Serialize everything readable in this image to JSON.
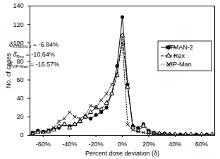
{
  "chart_data": {
    "type": "line",
    "x_label": "Percent dose deviation (δ)",
    "y_label": "No. of cases",
    "x": [
      -68,
      -64,
      -60,
      -56,
      -52,
      -48,
      -44,
      -40,
      -36,
      -32,
      -28,
      -24,
      -20,
      -16,
      -12,
      -8,
      -4,
      0,
      4,
      8,
      12,
      16,
      20,
      24,
      28,
      32,
      36,
      40,
      44,
      48,
      52,
      56,
      60,
      64,
      68
    ],
    "series": [
      {
        "name": "KTMAN-2",
        "color": "#000000",
        "marker": "circle",
        "line_style": "solid",
        "values": [
          3,
          5,
          4,
          5,
          7,
          8,
          12,
          10,
          12,
          15,
          20,
          18,
          22,
          25,
          30,
          45,
          75,
          128,
          55,
          10,
          8,
          12,
          5,
          3,
          2,
          2,
          1,
          1,
          1,
          1,
          0,
          1,
          0,
          1,
          0
        ]
      },
      {
        "name": "Rex",
        "color": "#000000",
        "marker": "triangle",
        "line_style": "dashed",
        "values": [
          2,
          3,
          3,
          4,
          6,
          10,
          12,
          8,
          12,
          15,
          20,
          25,
          30,
          28,
          35,
          45,
          65,
          108,
          52,
          8,
          5,
          10,
          3,
          2,
          2,
          1,
          1,
          1,
          0,
          1,
          1,
          0,
          1,
          0,
          1
        ]
      },
      {
        "name": "VIP-Man",
        "color": "#000000",
        "marker": "x",
        "line_style": "dotted",
        "values": [
          3,
          5,
          4,
          6,
          8,
          15,
          18,
          25,
          20,
          18,
          22,
          32,
          30,
          38,
          45,
          55,
          67,
          100,
          12,
          6,
          4,
          3,
          2,
          2,
          1,
          1,
          1,
          0,
          1,
          0,
          0,
          1,
          0,
          0,
          0
        ]
      }
    ],
    "annotations": [
      {
        "symbol": "δ̄",
        "subscript": "KTMAN-2",
        "text": "= -6.84%"
      },
      {
        "symbol": "δ̄",
        "subscript": "Rex",
        "text": "= -10.64%"
      },
      {
        "symbol": "δ̄",
        "subscript": "VIP-Man",
        "text": "= -16.57%"
      }
    ],
    "xlim": [
      -70,
      70
    ],
    "xticks": [
      {
        "value": -60,
        "label": "-60%"
      },
      {
        "value": -40,
        "label": "-40%"
      },
      {
        "value": -20,
        "label": "-20%"
      },
      {
        "value": 0,
        "label": "0%"
      },
      {
        "value": 20,
        "label": "20%"
      },
      {
        "value": 40,
        "label": "40%"
      },
      {
        "value": 60,
        "label": "60%"
      }
    ],
    "ylim": [
      0,
      140
    ],
    "yticks": [
      0,
      20,
      40,
      60,
      80,
      100,
      120,
      140
    ],
    "grid": false,
    "legend": "top-right"
  }
}
